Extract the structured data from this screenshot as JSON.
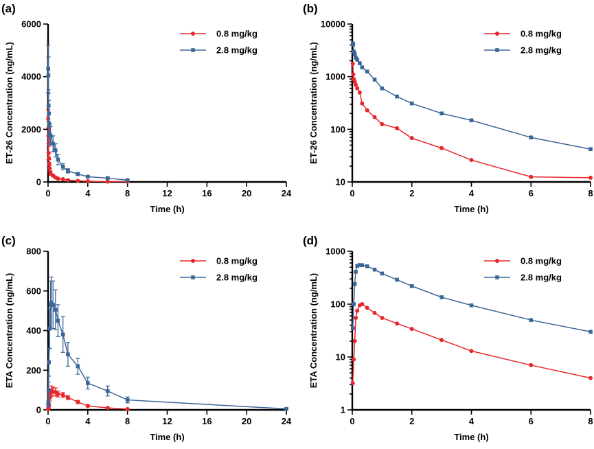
{
  "colors": {
    "red": "#e8262a",
    "blue": "#3c6697"
  },
  "chart_data": [
    {
      "id": "a",
      "panel_label": "(a)",
      "type": "line",
      "yscale": "linear",
      "xlabel": "Time (h)",
      "ylabel": "ET-26 Concentration (ng/mL)",
      "xlim": [
        0,
        24
      ],
      "ylim": [
        0,
        6000
      ],
      "xticks": [
        0,
        4,
        8,
        12,
        16,
        20,
        24
      ],
      "xtick_labels": [
        "0",
        "4",
        "8",
        "12",
        "16",
        "20",
        "24"
      ],
      "yticks": [
        0,
        2000,
        4000,
        6000
      ],
      "ytick_labels": [
        "0",
        "2000",
        "4000",
        "6000"
      ],
      "legend_position": "top-right",
      "series": [
        {
          "name": "0.8 mg/kg",
          "color": "#e8262a",
          "marker": "circle",
          "x": [
            0.017,
            0.033,
            0.05,
            0.083,
            0.117,
            0.167,
            0.25,
            0.5,
            0.75,
            1,
            1.5,
            2,
            3,
            4,
            6,
            8
          ],
          "y": [
            2400,
            1750,
            1100,
            900,
            700,
            520,
            330,
            240,
            170,
            125,
            105,
            68,
            44,
            26,
            12,
            12
          ],
          "err": [
            350,
            300,
            250,
            200,
            150,
            100,
            80,
            50,
            40,
            30,
            20,
            15,
            10,
            8,
            5,
            4
          ]
        },
        {
          "name": "2.8 mg/kg",
          "color": "#3c6697",
          "marker": "square",
          "x": [
            0.017,
            0.033,
            0.05,
            0.083,
            0.117,
            0.167,
            0.25,
            0.5,
            0.75,
            1,
            1.5,
            2,
            3,
            4,
            6,
            8
          ],
          "y": [
            4300,
            4050,
            2900,
            2600,
            2200,
            1800,
            1750,
            1450,
            1200,
            850,
            580,
            420,
            300,
            200,
            145,
            68
          ],
          "err": [
            900,
            700,
            600,
            500,
            450,
            400,
            350,
            300,
            250,
            200,
            120,
            80,
            60,
            40,
            30,
            15
          ]
        }
      ]
    },
    {
      "id": "b",
      "panel_label": "(b)",
      "type": "line",
      "yscale": "log",
      "xlabel": "Time (h)",
      "ylabel": "ET-26 Concentration (ng/mL)",
      "xlim": [
        0,
        8
      ],
      "ylim": [
        10,
        10000
      ],
      "xticks": [
        0,
        2,
        4,
        6,
        8
      ],
      "xtick_labels": [
        "0",
        "2",
        "4",
        "6",
        "8"
      ],
      "yticks": [
        10,
        100,
        1000,
        10000
      ],
      "ytick_labels": [
        "10",
        "100",
        "1000",
        "10000"
      ],
      "legend_position": "top-right",
      "series": [
        {
          "name": "0.8 mg/kg",
          "color": "#e8262a",
          "marker": "circle",
          "x": [
            0.017,
            0.033,
            0.05,
            0.083,
            0.117,
            0.167,
            0.25,
            0.33,
            0.5,
            0.75,
            1,
            1.5,
            2,
            3,
            4,
            6,
            8
          ],
          "y": [
            1750,
            1100,
            900,
            800,
            700,
            600,
            500,
            310,
            230,
            170,
            125,
            105,
            68,
            44,
            26,
            12.5,
            12
          ]
        },
        {
          "name": "2.8 mg/kg",
          "color": "#3c6697",
          "marker": "square",
          "x": [
            0.017,
            0.033,
            0.05,
            0.083,
            0.117,
            0.167,
            0.25,
            0.33,
            0.5,
            0.75,
            1,
            1.5,
            2,
            3,
            4,
            6,
            8
          ],
          "y": [
            4300,
            4100,
            3000,
            2700,
            2300,
            2100,
            1800,
            1500,
            1250,
            880,
            600,
            420,
            310,
            200,
            148,
            70,
            42
          ]
        }
      ]
    },
    {
      "id": "c",
      "panel_label": "(c)",
      "type": "line",
      "yscale": "linear",
      "xlabel": "Time (h)",
      "ylabel": "ETA Concentration (ng/mL)",
      "xlim": [
        0,
        24
      ],
      "ylim": [
        0,
        800
      ],
      "xticks": [
        0,
        4,
        8,
        12,
        16,
        20,
        24
      ],
      "xtick_labels": [
        "0",
        "4",
        "8",
        "12",
        "16",
        "20",
        "24"
      ],
      "yticks": [
        0,
        200,
        400,
        600,
        800
      ],
      "ytick_labels": [
        "0",
        "200",
        "400",
        "600",
        "800"
      ],
      "legend_position": "top-right",
      "series": [
        {
          "name": "0.8 mg/kg",
          "color": "#e8262a",
          "marker": "circle",
          "x": [
            0.017,
            0.05,
            0.083,
            0.167,
            0.25,
            0.33,
            0.5,
            0.75,
            1,
            1.5,
            2,
            3,
            4,
            6,
            8
          ],
          "y": [
            3,
            10,
            25,
            60,
            85,
            95,
            92,
            90,
            80,
            75,
            62,
            40,
            20,
            10,
            4
          ],
          "err": [
            2,
            5,
            10,
            15,
            20,
            25,
            22,
            20,
            15,
            12,
            10,
            8,
            5,
            3,
            2
          ]
        },
        {
          "name": "2.8 mg/kg",
          "color": "#3c6697",
          "marker": "square",
          "x": [
            0.017,
            0.05,
            0.083,
            0.167,
            0.25,
            0.33,
            0.5,
            0.75,
            1,
            1.5,
            2,
            3,
            4,
            6,
            8,
            24
          ],
          "y": [
            30,
            100,
            240,
            410,
            530,
            540,
            530,
            505,
            450,
            380,
            280,
            220,
            135,
            95,
            50,
            5
          ],
          "err": [
            15,
            40,
            70,
            100,
            120,
            130,
            120,
            100,
            80,
            90,
            60,
            40,
            30,
            25,
            15,
            3
          ]
        }
      ]
    },
    {
      "id": "d",
      "panel_label": "(d)",
      "type": "line",
      "yscale": "log",
      "xlabel": "Time (h)",
      "ylabel": "ETA Concentration (ng/mL)",
      "xlim": [
        0,
        8
      ],
      "ylim": [
        1,
        1000
      ],
      "xticks": [
        0,
        2,
        4,
        6,
        8
      ],
      "xtick_labels": [
        "0",
        "2",
        "4",
        "6",
        "8"
      ],
      "yticks": [
        1,
        10,
        100,
        1000
      ],
      "ytick_labels": [
        "1",
        "10",
        "100",
        "1000"
      ],
      "legend_position": "top-right",
      "series": [
        {
          "name": "0.8 mg/kg",
          "color": "#e8262a",
          "marker": "circle",
          "x": [
            0.017,
            0.05,
            0.083,
            0.117,
            0.167,
            0.25,
            0.33,
            0.5,
            0.75,
            1,
            1.5,
            2,
            3,
            4,
            6,
            8
          ],
          "y": [
            3.2,
            9,
            20,
            55,
            75,
            95,
            100,
            85,
            68,
            55,
            43,
            34,
            21,
            13,
            7,
            4
          ]
        },
        {
          "name": "2.8 mg/kg",
          "color": "#3c6697",
          "marker": "square",
          "x": [
            0.017,
            0.05,
            0.083,
            0.117,
            0.167,
            0.25,
            0.33,
            0.5,
            0.75,
            1,
            1.5,
            2,
            3,
            4,
            6,
            8
          ],
          "y": [
            35,
            100,
            240,
            410,
            530,
            550,
            545,
            520,
            450,
            380,
            290,
            220,
            135,
            95,
            50,
            30
          ]
        }
      ]
    }
  ]
}
